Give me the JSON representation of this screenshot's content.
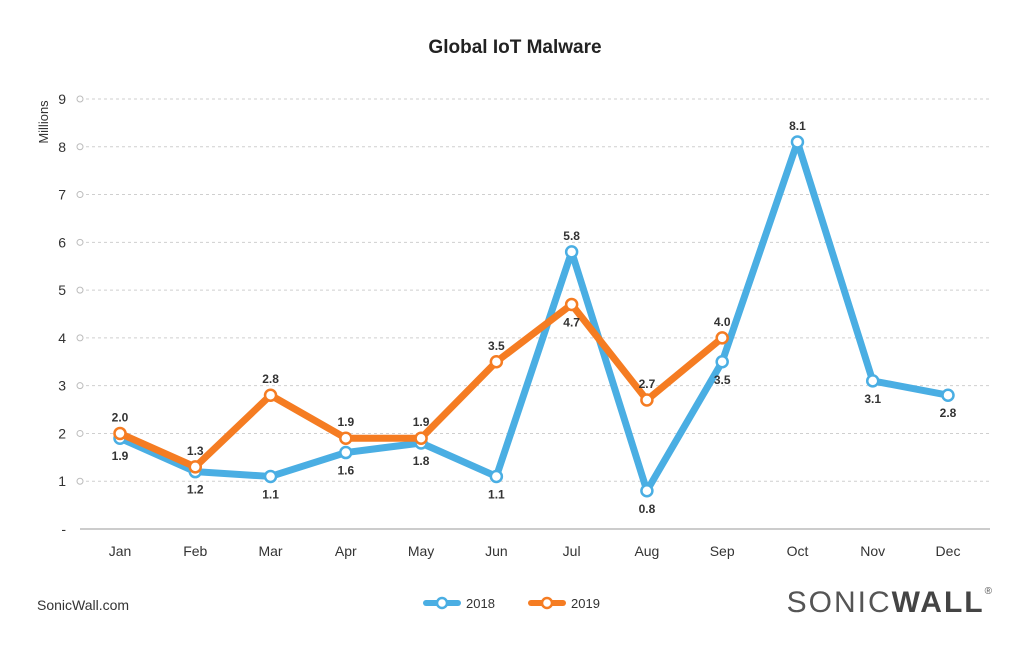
{
  "chart_data": {
    "type": "line",
    "title": "Global IoT Malware",
    "ylabel": "Millions",
    "categories": [
      "Jan",
      "Feb",
      "Mar",
      "Apr",
      "May",
      "Jun",
      "Jul",
      "Aug",
      "Sep",
      "Oct",
      "Nov",
      "Dec"
    ],
    "yticks": [
      "-",
      "1",
      "2",
      "3",
      "4",
      "5",
      "6",
      "7",
      "8",
      "9"
    ],
    "ylim": [
      0,
      9
    ],
    "grid": true,
    "legend": "bottom-center",
    "series": [
      {
        "name": "2018",
        "color": "#4aaee3",
        "values": [
          1.9,
          1.2,
          1.1,
          1.6,
          1.8,
          1.1,
          5.8,
          0.8,
          3.5,
          8.1,
          3.1,
          2.8
        ],
        "labels": [
          "1.9",
          "1.2",
          "1.1",
          "1.6",
          "1.8",
          "1.1",
          "5.8",
          "0.8",
          "3.5",
          "8.1",
          "3.1",
          "2.8"
        ]
      },
      {
        "name": "2019",
        "color": "#f57c22",
        "values": [
          2.0,
          1.3,
          2.8,
          1.9,
          1.9,
          3.5,
          4.7,
          2.7,
          4.0,
          null,
          null,
          null
        ],
        "labels": [
          "2.0",
          "1.3",
          "2.8",
          "1.9",
          "1.9",
          "3.5",
          "4.7",
          "2.7",
          "4.0",
          null,
          null,
          null
        ]
      }
    ]
  },
  "footer": {
    "source": "SonicWall.com"
  },
  "brand": {
    "part1": "SONIC",
    "part2": "WALL",
    "mark": "®"
  }
}
